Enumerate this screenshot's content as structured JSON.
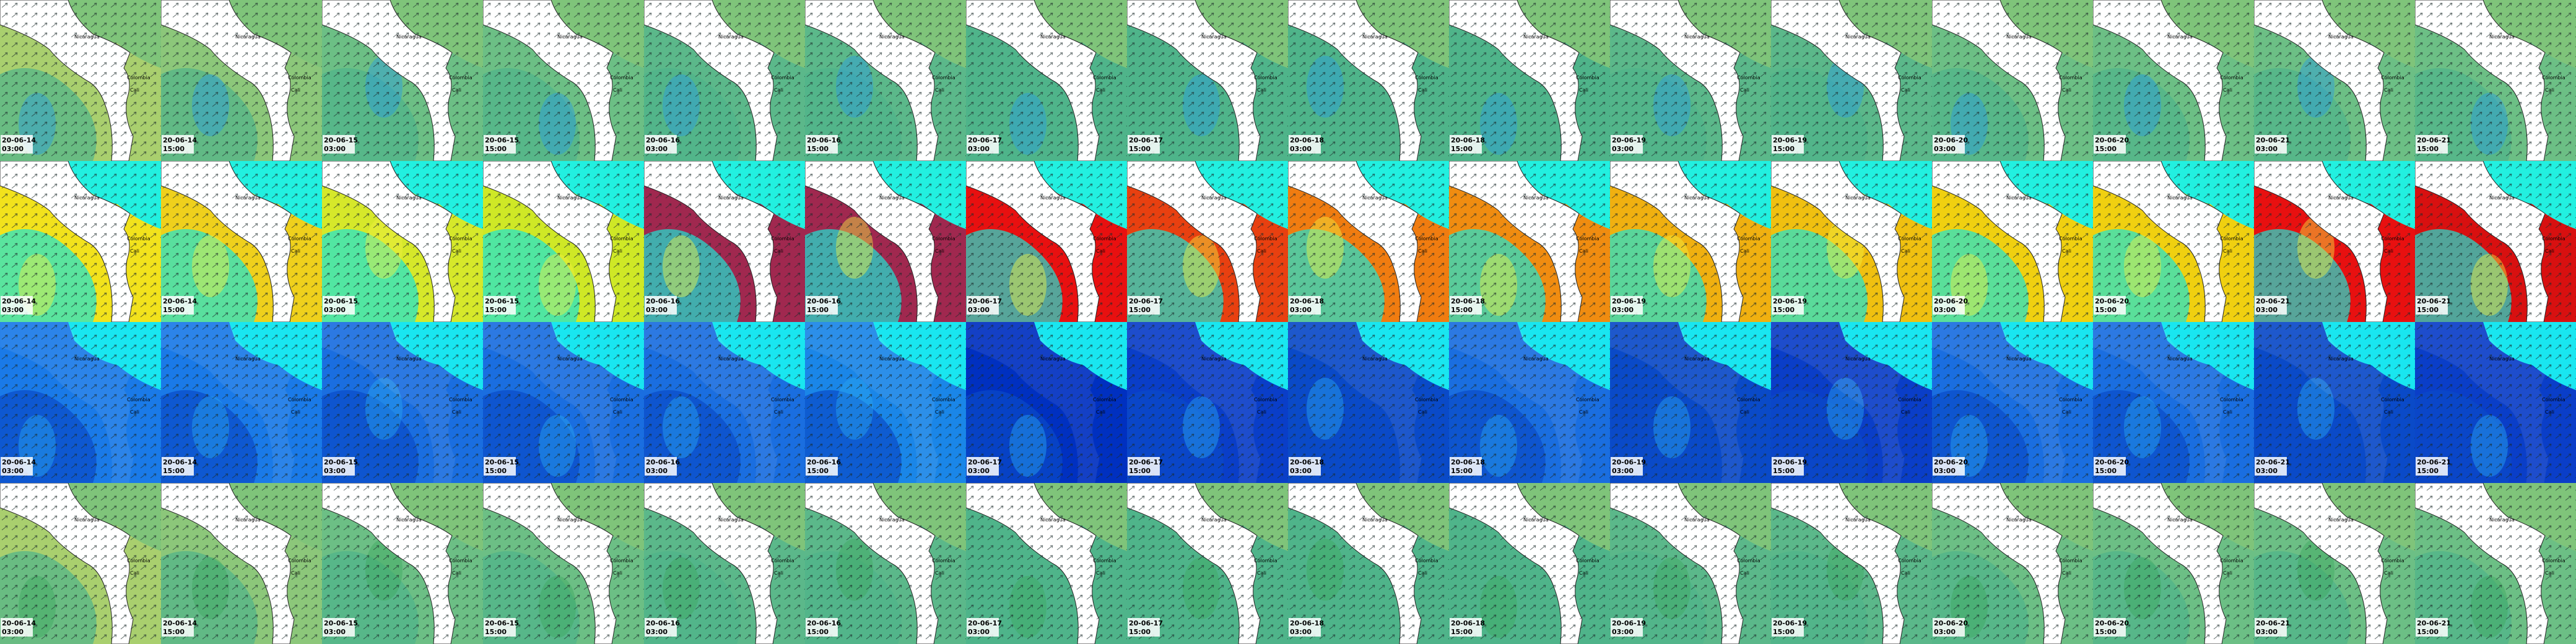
{
  "frames": [
    {
      "date": "20-06-14",
      "time": "03:00"
    },
    {
      "date": "20-06-14",
      "time": "15:00"
    },
    {
      "date": "20-06-15",
      "time": "03:00"
    },
    {
      "date": "20-06-15",
      "time": "15:00"
    },
    {
      "date": "20-06-16",
      "time": "03:00"
    },
    {
      "date": "20-06-16",
      "time": "15:00"
    },
    {
      "date": "20-06-17",
      "time": "03:00"
    },
    {
      "date": "20-06-17",
      "time": "15:00"
    },
    {
      "date": "20-06-18",
      "time": "03:00"
    },
    {
      "date": "20-06-18",
      "time": "15:00"
    },
    {
      "date": "20-06-19",
      "time": "03:00"
    },
    {
      "date": "20-06-19",
      "time": "15:00"
    },
    {
      "date": "20-06-20",
      "time": "03:00"
    },
    {
      "date": "20-06-20",
      "time": "15:00"
    },
    {
      "date": "20-06-21",
      "time": "03:00"
    },
    {
      "date": "20-06-21",
      "time": "15:00"
    }
  ],
  "map_labels": {
    "north": "Nicaragua",
    "east": "Colombia",
    "city": "Cali"
  },
  "rows": [
    {
      "sea": "#4fb48a",
      "top": "#7fc47a",
      "fields": [
        "#a9cf6e",
        "#8cc77a",
        "#6cbf85",
        "#6cbf85",
        "#5bb88a",
        "#5bb88a",
        "#4fb48a",
        "#4fb48a",
        "#4fb48a",
        "#4fb48a",
        "#5bb88a",
        "#5bb88a",
        "#6cbf85",
        "#6cbf85",
        "#6cbf85",
        "#6cbf85"
      ],
      "accent": "#2a9be0"
    },
    {
      "sea": "#19e6d6",
      "top": "#22f0e0",
      "fields": [
        "#f2e21c",
        "#efd01c",
        "#d6e82a",
        "#cfe826",
        "#a0284f",
        "#a0284f",
        "#e81010",
        "#e84010",
        "#f07c10",
        "#f08c10",
        "#f0b010",
        "#f0c010",
        "#f0d010",
        "#f0d010",
        "#e81010",
        "#d81010"
      ],
      "accent": "#f0f040"
    },
    {
      "sea": "#0a4ac8",
      "top": "#19e6f0",
      "fields": [
        "#1a7ae8",
        "#1a7ae8",
        "#1a6ee0",
        "#1a6ee0",
        "#1a6ee0",
        "#1a86e8",
        "#0030c0",
        "#0a3ec8",
        "#0a4ac8",
        "#1a6ee0",
        "#0a4ac8",
        "#0a3ec8",
        "#1a6ee0",
        "#1a6ee0",
        "#0a4ac8",
        "#0a3ec8"
      ],
      "accent": "#2aa6f0"
    },
    {
      "sea": "#4fb48a",
      "top": "#7fc47a",
      "fields": [
        "#a9cf6e",
        "#8cc77a",
        "#6cbf85",
        "#6cbf85",
        "#5bb88a",
        "#5bb88a",
        "#4fb48a",
        "#4fb48a",
        "#4fb48a",
        "#4fb48a",
        "#5bb88a",
        "#5bb88a",
        "#6cbf85",
        "#6cbf85",
        "#6cbf85",
        "#6cbf85"
      ],
      "accent": "#3fa860"
    }
  ]
}
